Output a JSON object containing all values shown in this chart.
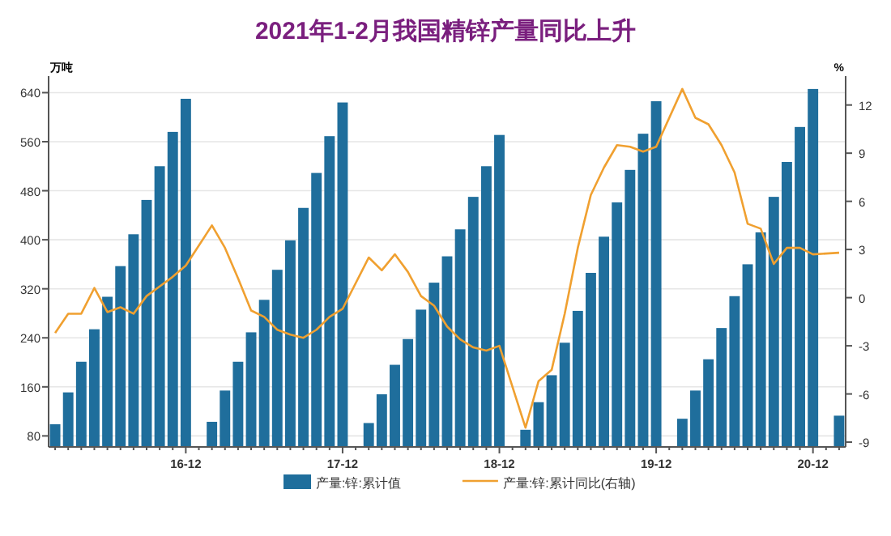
{
  "chart_data": {
    "type": "bar",
    "title": "2021年1-2月我国精锌产量同比上升",
    "ylabel": "万吨",
    "y2label": "%",
    "categories": [
      null,
      null,
      null,
      null,
      null,
      null,
      null,
      null,
      null,
      null,
      "16-12",
      null,
      null,
      null,
      null,
      null,
      null,
      null,
      null,
      null,
      null,
      null,
      "17-12",
      null,
      null,
      null,
      null,
      null,
      null,
      null,
      null,
      null,
      null,
      null,
      "18-12",
      null,
      null,
      null,
      null,
      null,
      null,
      null,
      null,
      null,
      null,
      null,
      "19-12",
      null,
      null,
      null,
      null,
      null,
      null,
      null,
      null,
      null,
      null,
      null,
      "20-12",
      null,
      null
    ],
    "series": [
      {
        "name": "产量:锌:累计值",
        "color": "#1f6e9c",
        "values": [
          99,
          151,
          201,
          254,
          307,
          357,
          409,
          465,
          520,
          576,
          630,
          null,
          103,
          154,
          201,
          249,
          302,
          351,
          399,
          452,
          509,
          569,
          624,
          null,
          101,
          148,
          196,
          238,
          286,
          330,
          373,
          417,
          470,
          520,
          571,
          null,
          90,
          135,
          179,
          232,
          284,
          346,
          405,
          461,
          514,
          573,
          626,
          null,
          108,
          154,
          205,
          256,
          308,
          360,
          412,
          470,
          527,
          584,
          646,
          null,
          113
        ]
      },
      {
        "name": "产量:锌:累计同比(右轴)",
        "type": "line",
        "axis": "y2",
        "color": "#f0a030",
        "values": [
          -2.2,
          -1.0,
          -1.0,
          0.6,
          -0.9,
          -0.6,
          -1.0,
          0.1,
          0.7,
          1.3,
          2.0,
          null,
          4.5,
          3.1,
          1.2,
          -0.8,
          -1.2,
          -2.0,
          -2.3,
          -2.5,
          -2.0,
          -1.2,
          -0.7,
          null,
          2.5,
          1.7,
          2.7,
          1.6,
          0.1,
          -0.5,
          -1.8,
          -2.6,
          -3.1,
          -3.3,
          -3.0,
          null,
          -8.1,
          -5.2,
          -4.5,
          -1.0,
          3.1,
          6.4,
          8.1,
          9.5,
          9.4,
          9.1,
          9.4,
          null,
          13.0,
          11.2,
          10.8,
          9.5,
          7.8,
          4.6,
          4.3,
          2.1,
          3.1,
          3.1,
          2.7,
          null,
          2.8
        ]
      }
    ],
    "ylim": [
      62,
      667
    ],
    "yticks": [
      80,
      160,
      240,
      320,
      400,
      480,
      560,
      640
    ],
    "y2lim": [
      -9.3,
      13.8
    ],
    "y2ticks": [
      -9,
      -6,
      -3,
      0,
      3,
      6,
      9,
      12
    ],
    "grid": "y",
    "legend": "bottom"
  }
}
